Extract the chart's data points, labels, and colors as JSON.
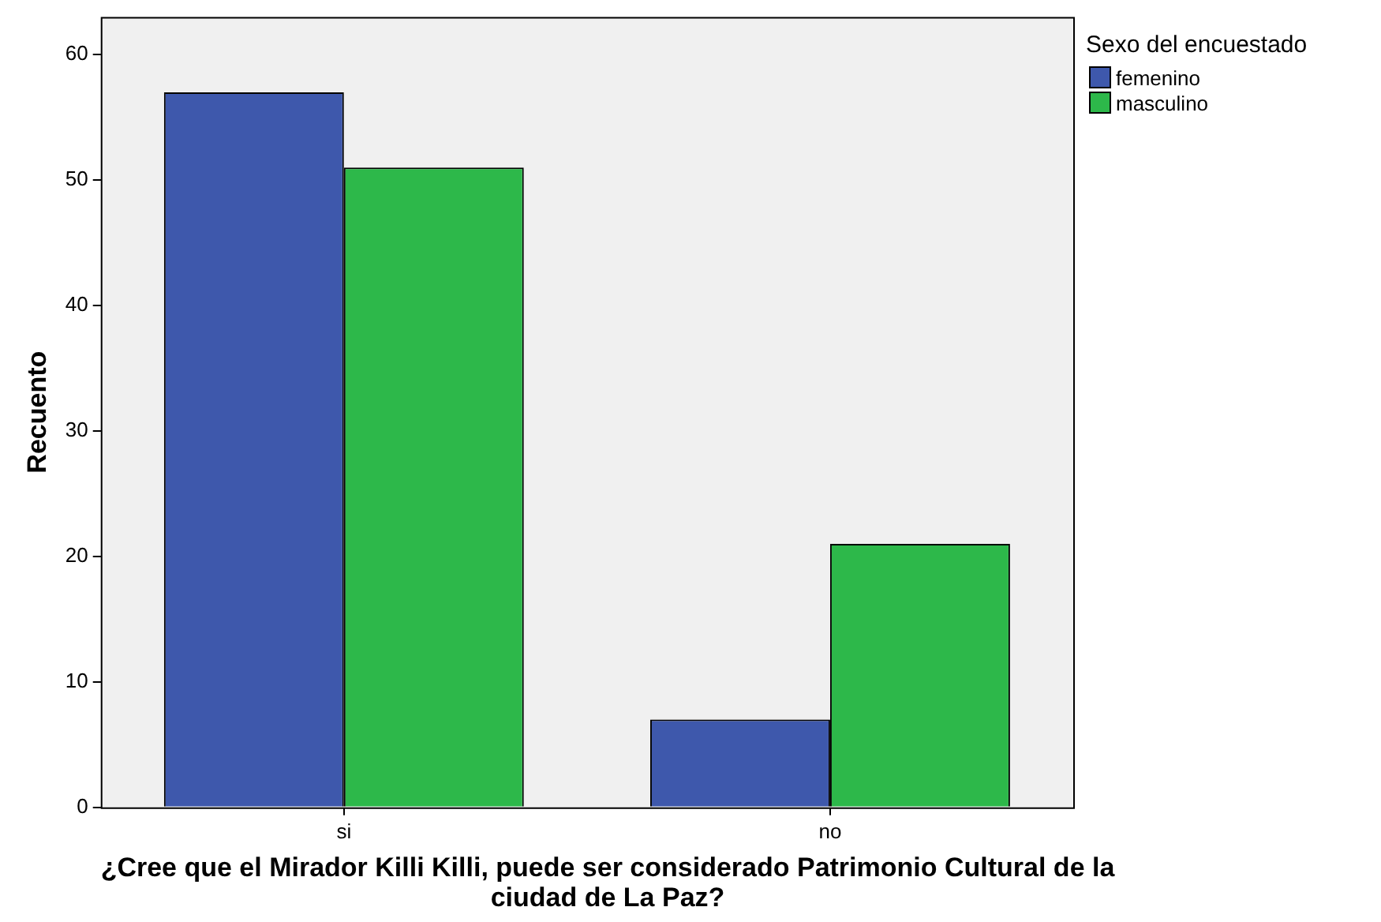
{
  "chart_data": {
    "type": "bar",
    "xlabel": "¿Cree que el Mirador Killi Killi, puede ser considerado Patrimonio Cultural de la ciudad de La Paz?",
    "ylabel": "Recuento",
    "legend_title": "Sexo del encuestado",
    "categories": [
      "si",
      "no"
    ],
    "series": [
      {
        "name": "femenino",
        "color": "#3e58ac",
        "values": [
          57,
          7
        ]
      },
      {
        "name": "masculino",
        "color": "#2db84a",
        "values": [
          51,
          21
        ]
      }
    ],
    "ylim": [
      0,
      63
    ],
    "yticks": [
      0,
      10,
      20,
      30,
      40,
      50,
      60
    ],
    "grid": false,
    "legend": "top right"
  }
}
